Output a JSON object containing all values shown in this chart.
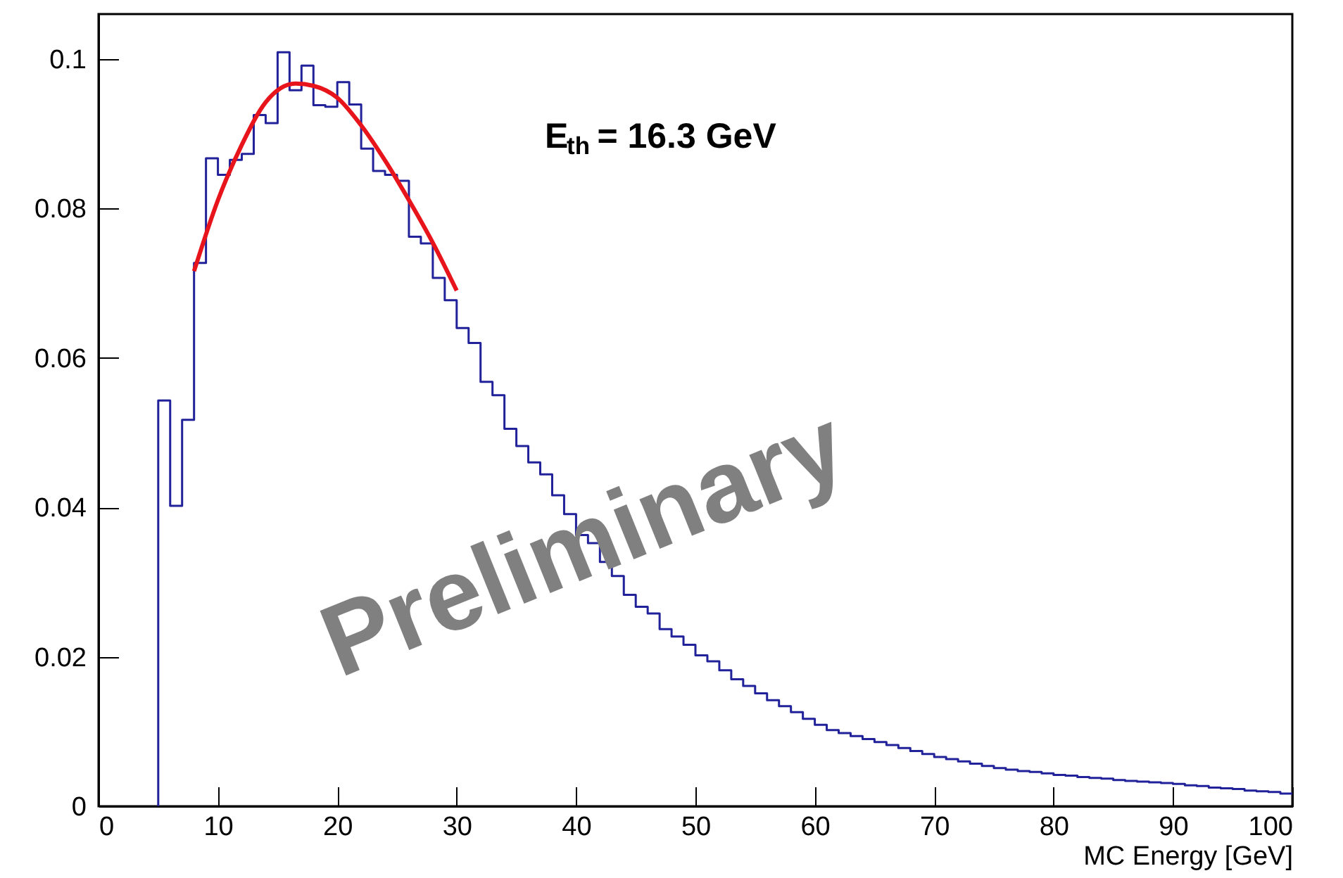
{
  "chart_data": {
    "type": "histogram",
    "xlabel": "MC Energy [GeV]",
    "annotations": [
      "E$_{th}$ = 16.3 GeV",
      "Preliminary"
    ],
    "bins": [
      5,
      6,
      7,
      8,
      9,
      10,
      11,
      12,
      13,
      14,
      15,
      16,
      17,
      18,
      19,
      20,
      21,
      22,
      23,
      24,
      25,
      26,
      27,
      28,
      29,
      30,
      31,
      32,
      33,
      34,
      35,
      36,
      37,
      38,
      39,
      40,
      41,
      42,
      43,
      44,
      45,
      46,
      47,
      48,
      49,
      50,
      51,
      52,
      53,
      54,
      55,
      56,
      57,
      58,
      59,
      60,
      61,
      62,
      63,
      64,
      65,
      66,
      67,
      68,
      69,
      70,
      71,
      72,
      73,
      74,
      75,
      76,
      77,
      78,
      79,
      80,
      81,
      82,
      83,
      84,
      85,
      86,
      87,
      88,
      89,
      90,
      91,
      92,
      93,
      94,
      95,
      96,
      97,
      98,
      99,
      100
    ],
    "series": [
      {
        "color": "#21219a",
        "values": [
          0.0543,
          0.0402,
          0.0517,
          0.0727,
          0.0867,
          0.0845,
          0.0865,
          0.0873,
          0.0925,
          0.0914,
          0.1009,
          0.0958,
          0.0991,
          0.0938,
          0.0936,
          0.0969,
          0.0939,
          0.088,
          0.085,
          0.0845,
          0.0837,
          0.0762,
          0.0753,
          0.0707,
          0.0677,
          0.064,
          0.062,
          0.0568,
          0.055,
          0.0505,
          0.0482,
          0.046,
          0.0444,
          0.0416,
          0.0391,
          0.0363,
          0.0352,
          0.0327,
          0.0308,
          0.0283,
          0.0267,
          0.0258,
          0.0237,
          0.0227,
          0.0216,
          0.0202,
          0.0194,
          0.0182,
          0.017,
          0.0161,
          0.0151,
          0.0142,
          0.0134,
          0.0126,
          0.0117,
          0.0109,
          0.0102,
          0.0098,
          0.0094,
          0.009,
          0.0086,
          0.0082,
          0.0078,
          0.0074,
          0.007,
          0.0066,
          0.0063,
          0.006,
          0.0057,
          0.0054,
          0.0051,
          0.0049,
          0.0047,
          0.0046,
          0.0044,
          0.0042,
          0.0041,
          0.0039,
          0.0038,
          0.0037,
          0.0035,
          0.0034,
          0.0033,
          0.0032,
          0.0031,
          0.003,
          0.0028,
          0.0027,
          0.0025,
          0.0024,
          0.0023,
          0.0021,
          0.002,
          0.0019,
          0.0017
        ]
      },
      {
        "type": "line",
        "color": "#e8141b",
        "x": [
          8,
          10,
          12,
          14,
          16.5,
          18,
          20,
          22,
          24,
          26,
          28,
          30
        ],
        "values": [
          0.0716,
          0.0811,
          0.0885,
          0.0942,
          0.0967,
          0.0964,
          0.0948,
          0.0911,
          0.0864,
          0.0811,
          0.0754,
          0.069
        ]
      }
    ],
    "xlim": [
      0,
      100
    ],
    "ylim": [
      0,
      0.106
    ],
    "xticks": [
      0,
      10,
      20,
      30,
      40,
      50,
      60,
      70,
      80,
      90,
      100
    ],
    "yticks": [
      0,
      0.02,
      0.04,
      0.06,
      0.08,
      0.1
    ]
  }
}
